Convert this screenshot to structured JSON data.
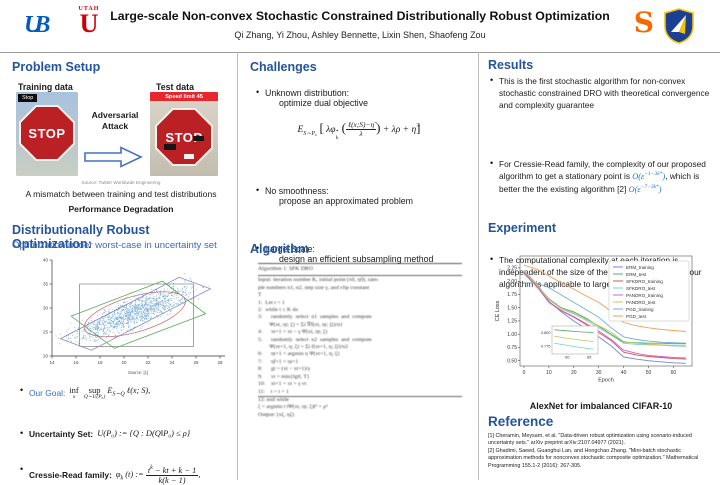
{
  "header": {
    "title": "Large-scale Non-convex Stochastic Constrained Distributionally Robust Optimization",
    "authors": "Qi Zhang, Yi Zhou, Ashley Bennette, Lixin Shen, Shaofeng Zou",
    "logos": {
      "ub": "UB",
      "utah_word": "UTAH",
      "utah_u": "U",
      "syracuse": "S",
      "afrl": "afrl-shield"
    }
  },
  "problem_setup": {
    "heading": "Problem Setup",
    "training_label": "Training data",
    "test_label": "Test data",
    "stop_sign_text": "STOP",
    "stop_tag": "Stop",
    "speed_tag": "Speed limit 45",
    "attack_line1": "Adversarial",
    "attack_line2": "Attack",
    "img_caption": "Source: Twitter Worldwide Engineering",
    "mismatch": "A mismatch between training and test distributions",
    "degradation": "Performance Degradation",
    "dro_heading": "Distributionally Robust Optimization:",
    "dro_sub": "Optimization under worst-case in uncertainty set",
    "goal_label": "Our Goal:",
    "goal_formula": {
      "inf": "inf",
      "inf_sub": "x",
      "sup": "sup",
      "sup_sub": "Q∼U(P₀)",
      "E": "E",
      "E_sub": "S∼Q",
      "tail": "ℓ(x; S),"
    },
    "uset_label": "Uncertainty Set:",
    "uset_formula": "U(P₀) := {Q : D(Q‖P₀) ≤ ρ}",
    "cr_label": "Cressie-Read family:",
    "cr_formula": {
      "lhs": "φ",
      "lhs_sub": "k",
      "mid": "(t) :=",
      "num1": "t",
      "num_sup": "k",
      "num2": " − kt + k − 1",
      "den": "k(k − 1)",
      "tail": ","
    }
  },
  "challenges": {
    "heading": "Challenges",
    "b1_title": "Unknown distribution:",
    "b1_sub": "optimize dual objective",
    "formula": {
      "E": "E",
      "E_sub": "S∼P₀",
      "lb": "[",
      "f1": "λφ",
      "f1_sup": "*",
      "f1_sub": "k",
      "lp": "(",
      "num": "ℓ(x;S)−η̃",
      "den": "λ",
      "rp": ")",
      "tail": "+ λρ + η̃",
      "rb": "]"
    },
    "b2_title": "No smoothness:",
    "b2_sub": "propose an approximated problem",
    "b3_title": "Large-Scale:",
    "b3_sub": "design an efficient subsampling method"
  },
  "algorithm": {
    "heading": "Algorithm",
    "lines": [
      "Algorithm 1: SFK DRO",
      "Input: iteration number K, initial point (x0, η0), sam-",
      "ple numbers n1, n2, step size γ, and clip constant",
      "T",
      "1:  Let t = 1",
      "2:  while t ≤ K do",
      "3:      randomly  select  n1  samples  and  compute",
      "        Ψ(xt, ηt; ξ) = Σi ∇f(xt, ηt; ξi)/n1",
      "4:      xt+1 = xt − γ Ψ(xt, ηt; ξ)",
      "5:      randomly  select  n2  samples  and  compute",
      "        Ψ(xt+1, η; ξ) = Σi f(xt+1, η; ξi)/n2",
      "6:      ηt+1 = argmin η Ψ(xt+1, η; ξ)",
      "7:      η̃t+1 = ηt+1",
      "8:      gt = (xt − xt+1)/γ",
      "9:      vt = min{‖gt‖, T}",
      "10:    xt+1 = xt + γ vt",
      "11:    t = t + 1",
      "12: end while",
      "ζ = argmin t ‖Ψ(xt, ηt; ξ)‖² + ρ²",
      "Output: (xζ, ηζ)"
    ]
  },
  "results": {
    "heading": "Results",
    "b1": "This is  the first stochastic algorithm for non-convex stochastic constrained DRO with theoretical convergence and complexity guarantee",
    "b2_t1": "For Cressie-Read family, the complexity of our proposed algorithm to get a  stationary point is ",
    "b2_m1a": "O(ε",
    "b2_m1s": "−1−3k*",
    "b2_m1b": ")",
    "b2_t2": ", which is better the the existing algorithm [2] ",
    "b2_m2a": "O(ε",
    "b2_m2s": "−7−3k*",
    "b2_m2b": ")",
    "b3": "The computational complexity at each iteration is independent of the size of the training dataset, thus our algorithm is applicable to large scale applications"
  },
  "experiment": {
    "heading": "Experiment",
    "caption": "AlexNet for imbalanced CIFAR-10"
  },
  "reference": {
    "heading": "Reference",
    "items": [
      "[1] Cheramin, Meysam, et al. \"Data-driven robust optimization using scenario-induced uncertainty sets.\" arXiv preprint arXiv:2107.04977 (2021).",
      "[2] Ghadimi, Saeed, Guanghui Lan, and Hongchao Zhang. \"Mini-batch stochastic approximation methods for nonconvex stochastic composite optimization.\" Mathematical Programming 155.1-2 (2016): 267-305."
    ]
  },
  "chart_data": [
    {
      "type": "scatter",
      "title": "",
      "xlabel": "",
      "ylabel": "",
      "caption": "Source: [1]",
      "xlim": [
        14,
        28
      ],
      "ylim": [
        20,
        40
      ],
      "xticks": [
        14,
        16,
        18,
        20,
        22,
        24,
        26,
        28
      ],
      "yticks": [
        20,
        25,
        30,
        35,
        40
      ],
      "cloud": {
        "center": [
          20.7,
          28.8
        ],
        "sigma_major": 3.3,
        "sigma_minor": 0.95,
        "count": 1200,
        "color": "#2b7bba"
      },
      "shapes": [
        {
          "kind": "rect",
          "x": [
            16.3,
            25.8
          ],
          "y": [
            22,
            35
          ],
          "color": "#8c8c8c"
        },
        {
          "kind": "polygon",
          "points": [
            [
              14.7,
              23.6
            ],
            [
              24.6,
              36.4
            ],
            [
              27.2,
              34.0
            ],
            [
              17.3,
              21.2
            ]
          ],
          "color": "#8585d0"
        },
        {
          "kind": "polygon",
          "points": [
            [
              15.6,
              28.3
            ],
            [
              23.2,
              35.6
            ],
            [
              26.8,
              28.8
            ],
            [
              19.2,
              21.6
            ]
          ],
          "color": "#5aab5a"
        },
        {
          "kind": "ellipse",
          "center": [
            20.9,
            28.7
          ],
          "rx": 5.6,
          "ry": 2.9,
          "color": "#cc7777"
        }
      ]
    },
    {
      "type": "line",
      "title": "",
      "xlabel": "Epoch",
      "ylabel": "CE Loss",
      "xlim": [
        0,
        65
      ],
      "ylim": [
        0.4,
        2.4
      ],
      "legend_position": "upper right",
      "x": [
        0,
        3,
        6,
        10,
        15,
        20,
        25,
        30,
        35,
        40,
        45,
        50,
        55,
        60,
        65
      ],
      "xticks": [
        0,
        10,
        20,
        30,
        40,
        50,
        60
      ],
      "yticks": [
        0.5,
        0.75,
        1.0,
        1.25,
        1.5,
        1.75,
        2.0,
        2.25
      ],
      "yticklabels": [
        "0.50",
        "0.75",
        "1.00",
        "1.25",
        "1.50",
        "1.75",
        "2.00",
        "2.25"
      ],
      "series": [
        {
          "name": "ERM_training",
          "color": "#7583e0",
          "values": [
            2.2,
            2.05,
            1.9,
            1.62,
            1.42,
            1.25,
            1.1,
            0.95,
            0.78,
            0.57,
            0.53,
            0.5,
            0.48,
            0.46,
            0.45
          ]
        },
        {
          "name": "ERM_test",
          "color": "#55a868",
          "values": [
            2.18,
            2.02,
            1.88,
            1.67,
            1.5,
            1.42,
            1.3,
            1.15,
            1.0,
            0.85,
            0.84,
            0.83,
            0.83,
            0.82,
            0.82
          ]
        },
        {
          "name": "SFKDRO_training",
          "color": "#d65454",
          "values": [
            2.15,
            2.0,
            1.85,
            1.6,
            1.44,
            1.32,
            1.18,
            1.03,
            0.88,
            0.66,
            0.61,
            0.58,
            0.56,
            0.54,
            0.53
          ]
        },
        {
          "name": "SFKDRO_test",
          "color": "#76d7c4",
          "values": [
            2.2,
            2.03,
            1.87,
            1.65,
            1.48,
            1.38,
            1.26,
            1.12,
            0.98,
            0.83,
            0.81,
            0.8,
            0.79,
            0.78,
            0.77
          ]
        },
        {
          "name": "PANDRO_training",
          "color": "#cc66cc",
          "values": [
            2.16,
            2.01,
            1.86,
            1.61,
            1.45,
            1.33,
            1.2,
            1.06,
            0.9,
            0.7,
            0.64,
            0.6,
            0.58,
            0.56,
            0.55
          ]
        },
        {
          "name": "PANDRO_test",
          "color": "#c9c35e",
          "values": [
            2.19,
            2.04,
            1.89,
            1.66,
            1.49,
            1.4,
            1.28,
            1.16,
            1.04,
            0.86,
            0.83,
            0.81,
            0.8,
            0.79,
            0.79
          ]
        },
        {
          "name": "PGD_training",
          "color": "#6db1d8",
          "values": [
            1.97,
            1.97,
            1.95,
            1.88,
            1.74,
            1.6,
            1.46,
            1.32,
            1.12,
            0.95,
            0.9,
            0.87,
            0.85,
            0.84,
            0.83
          ]
        },
        {
          "name": "PGD_test",
          "color": "#f09d54",
          "values": [
            2.3,
            2.26,
            2.21,
            2.1,
            1.97,
            1.85,
            1.72,
            1.6,
            1.43,
            1.22,
            1.16,
            1.12,
            1.09,
            1.07,
            1.05
          ]
        }
      ],
      "inset": {
        "x": [
          57,
          60,
          63,
          66
        ],
        "xticks": [
          60,
          65
        ],
        "ytick_vals": [
          0.8,
          0.775
        ],
        "yticklabels": [
          "0.800",
          "0.775"
        ],
        "lines": [
          {
            "color": "#55a868",
            "values": [
              0.805,
              0.803,
              0.801,
              0.8
            ]
          },
          {
            "color": "#c9c35e",
            "values": [
              0.793,
              0.789,
              0.786,
              0.783
            ]
          },
          {
            "color": "#76d7c4",
            "values": [
              0.78,
              0.776,
              0.772,
              0.769
            ]
          }
        ]
      }
    }
  ],
  "colors": {
    "accent_blue": "#24549c",
    "math_blue": "#2f6fce",
    "ub_blue": "#005BBB",
    "utah_red": "#CC0000",
    "syracuse_orange": "#F76900",
    "stop_red": "#bb2025",
    "speed_tag_red": "#e8262d"
  }
}
